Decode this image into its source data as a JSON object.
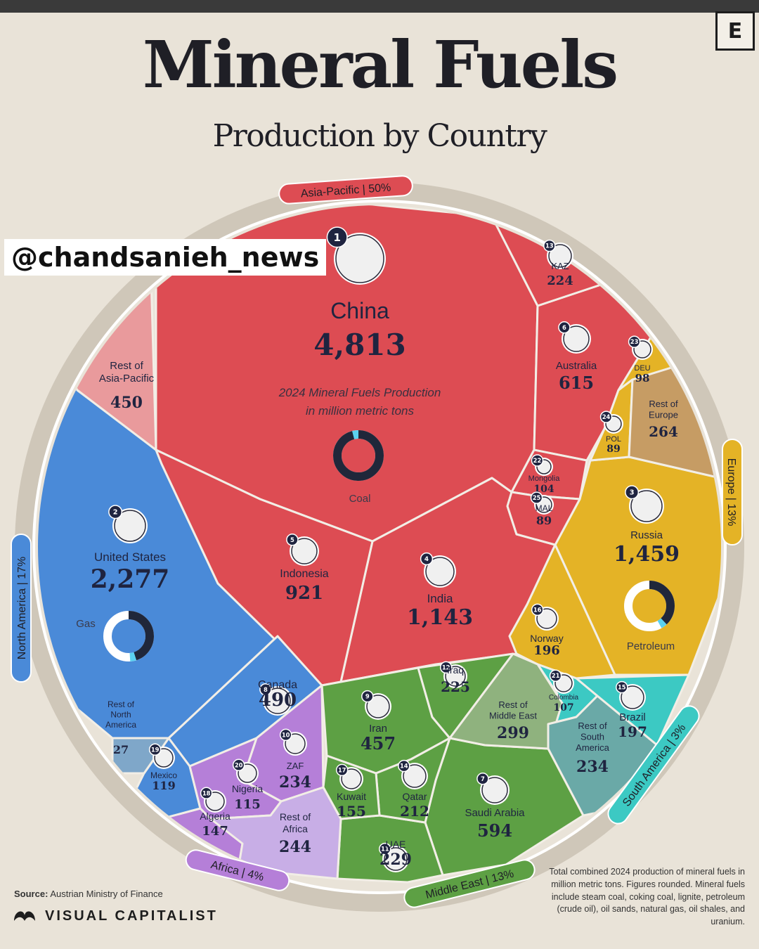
{
  "header": {
    "title": "Mineral Fuels",
    "subtitle": "Production by Country",
    "brand_letter": "E",
    "watermark": "@chandsanieh_news"
  },
  "chart_data": {
    "type": "voronoi-treemap",
    "title": "Mineral Fuels",
    "subtitle": "Production by Country",
    "description": "2024 Mineral Fuels Production in million metric tons",
    "unit": "million metric tons",
    "regions": [
      {
        "name": "Asia-Pacific",
        "share": "50%",
        "color": "#dd4c53"
      },
      {
        "name": "North America",
        "share": "17%",
        "color": "#4a8ad8"
      },
      {
        "name": "Europe",
        "share": "13%",
        "color": "#e4b326"
      },
      {
        "name": "Middle East",
        "share": "13%",
        "color": "#5da044"
      },
      {
        "name": "South America",
        "share": "3%",
        "color": "#3cc9c3"
      },
      {
        "name": "Africa",
        "share": "4%",
        "color": "#b57fd8"
      }
    ],
    "cells": [
      {
        "rank": 1,
        "label": "China",
        "value": 4813,
        "value_label": "4,813",
        "region": "Asia-Pacific",
        "dominant_fuel": "Coal",
        "fuel_share": 0.96
      },
      {
        "rank": 2,
        "label": "United States",
        "value": 2277,
        "value_label": "2,277",
        "region": "North America",
        "dominant_fuel": "Gas",
        "fuel_share": 0.45
      },
      {
        "rank": 3,
        "label": "Russia",
        "value": 1459,
        "value_label": "1,459",
        "region": "Europe",
        "dominant_fuel": "Petroleum",
        "fuel_share": 0.38
      },
      {
        "rank": 4,
        "label": "India",
        "value": 1143,
        "value_label": "1,143",
        "region": "Asia-Pacific"
      },
      {
        "rank": 5,
        "label": "Indonesia",
        "value": 921,
        "value_label": "921",
        "region": "Asia-Pacific"
      },
      {
        "rank": 6,
        "label": "Australia",
        "value": 615,
        "value_label": "615",
        "region": "Asia-Pacific"
      },
      {
        "rank": 7,
        "label": "Saudi Arabia",
        "value": 594,
        "value_label": "594",
        "region": "Middle East"
      },
      {
        "rank": 8,
        "label": "Canada",
        "value": 490,
        "value_label": "490",
        "region": "North America"
      },
      {
        "rank": 9,
        "label": "Iran",
        "value": 457,
        "value_label": "457",
        "region": "Middle East"
      },
      {
        "rank": 10,
        "label": "ZAF",
        "value": 234,
        "value_label": "234",
        "region": "Africa"
      },
      {
        "rank": 11,
        "label": "UAE",
        "value": 229,
        "value_label": "229",
        "region": "Middle East"
      },
      {
        "rank": 12,
        "label": "Iraq",
        "value": 225,
        "value_label": "225",
        "region": "Middle East"
      },
      {
        "rank": 13,
        "label": "KAZ",
        "value": 224,
        "value_label": "224",
        "region": "Asia-Pacific"
      },
      {
        "rank": 14,
        "label": "Qatar",
        "value": 212,
        "value_label": "212",
        "region": "Middle East"
      },
      {
        "rank": 15,
        "label": "Brazil",
        "value": 197,
        "value_label": "197",
        "region": "South America"
      },
      {
        "rank": 16,
        "label": "Norway",
        "value": 196,
        "value_label": "196",
        "region": "Europe"
      },
      {
        "rank": 17,
        "label": "Kuwait",
        "value": 155,
        "value_label": "155",
        "region": "Middle East"
      },
      {
        "rank": 18,
        "label": "Algeria",
        "value": 147,
        "value_label": "147",
        "region": "Africa"
      },
      {
        "rank": 19,
        "label": "Mexico",
        "value": 119,
        "value_label": "119",
        "region": "North America"
      },
      {
        "rank": 20,
        "label": "Nigeria",
        "value": 115,
        "value_label": "115",
        "region": "Africa"
      },
      {
        "rank": 21,
        "label": "Colombia",
        "value": 107,
        "value_label": "107",
        "region": "South America"
      },
      {
        "rank": 22,
        "label": "Mongolia",
        "value": 104,
        "value_label": "104",
        "region": "Asia-Pacific"
      },
      {
        "rank": 23,
        "label": "DEU",
        "value": 98,
        "value_label": "98",
        "region": "Europe"
      },
      {
        "rank": 24,
        "label": "POL",
        "value": 89,
        "value_label": "89",
        "region": "Europe"
      },
      {
        "rank": 25,
        "label": "MAL",
        "value": 89,
        "value_label": "89",
        "region": "Asia-Pacific"
      },
      {
        "rank": null,
        "label": "Rest of Asia-Pacific",
        "value": 450,
        "value_label": "450",
        "region": "Asia-Pacific"
      },
      {
        "rank": null,
        "label": "Rest of North America",
        "value": 27,
        "value_label": "27",
        "region": "North America"
      },
      {
        "rank": null,
        "label": "Rest of Europe",
        "value": 264,
        "value_label": "264",
        "region": "Europe"
      },
      {
        "rank": null,
        "label": "Rest of Middle East",
        "value": 299,
        "value_label": "299",
        "region": "Middle East"
      },
      {
        "rank": null,
        "label": "Rest of South America",
        "value": 234,
        "value_label": "234",
        "region": "South America"
      },
      {
        "rank": null,
        "label": "Rest of Africa",
        "value": 244,
        "value_label": "244",
        "region": "Africa"
      }
    ]
  },
  "footer": {
    "source_label": "Source:",
    "source_text": "Austrian Ministry of Finance",
    "brand_name": "VISUAL CAPITALIST",
    "note": "Total combined 2024 production of mineral fuels in million metric tons. Figures rounded. Mineral fuels include steam coal, coking coal, lignite, petroleum (crude oil), oil sands, natural gas, oil shales, and uranium."
  },
  "colors": {
    "background": "#e9e3d8",
    "asia_pacific": "#dd4c53",
    "asia_rest": "#e99a9c",
    "north_america": "#4a8ad8",
    "europe": "#e4b326",
    "europe_rest": "#c69c64",
    "middle_east": "#5da044",
    "middle_east_rest": "#8fb27e",
    "south_america": "#3cc9c3",
    "south_america_rest": "#6aa9a7",
    "africa": "#b57fd8",
    "africa_rest": "#c8aee6",
    "donut_dark": "#20273a",
    "donut_light": "#5bd1f0",
    "text_dark": "#1f2440"
  }
}
